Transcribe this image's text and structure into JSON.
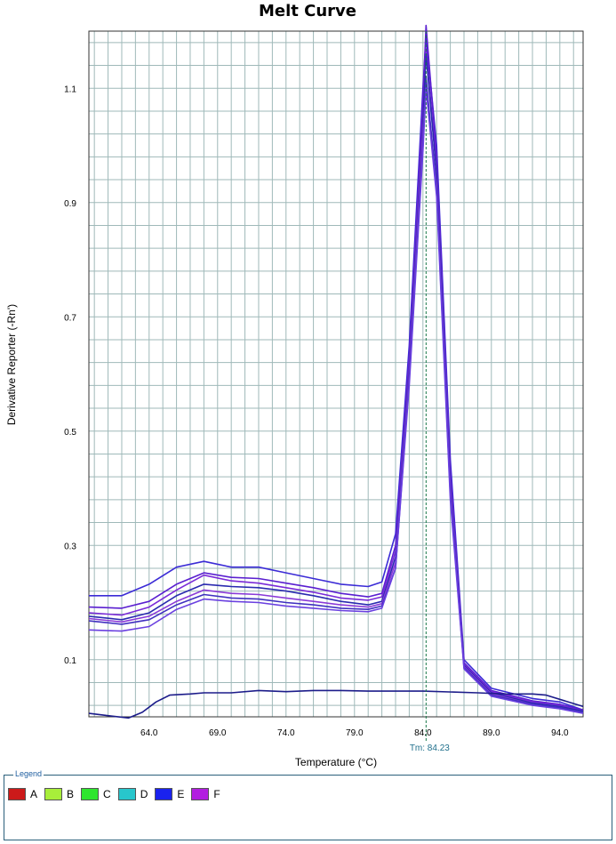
{
  "chart_data": {
    "type": "line",
    "title": "Melt Curve",
    "xlabel": "Temperature (°C)",
    "ylabel": "Derivative Reporter (-Rn')",
    "xlim": [
      59.6,
      95.7
    ],
    "ylim": [
      0.0,
      1.2
    ],
    "x_ticks": [
      64.0,
      69.0,
      74.0,
      79.0,
      84.0,
      89.0,
      94.0
    ],
    "x_tick_labels": [
      "64.0",
      "69.0",
      "74.0",
      "79.0",
      "84.0",
      "89.0",
      "94.0"
    ],
    "y_ticks": [
      0.1,
      0.3,
      0.5,
      0.7,
      0.9,
      1.1
    ],
    "y_tick_labels": [
      "0.1",
      "0.3",
      "0.5",
      "0.7",
      "0.9",
      "1.1"
    ],
    "grid": true,
    "tm_marker": {
      "x": 84.23,
      "label": "Tm: 84.23"
    },
    "series": [
      {
        "color": "#3b2bd6",
        "points": [
          [
            59.6,
            0.212
          ],
          [
            62,
            0.212
          ],
          [
            64,
            0.232
          ],
          [
            66,
            0.262
          ],
          [
            68,
            0.272
          ],
          [
            70,
            0.262
          ],
          [
            72,
            0.262
          ],
          [
            74,
            0.252
          ],
          [
            76,
            0.242
          ],
          [
            78,
            0.232
          ],
          [
            80,
            0.228
          ],
          [
            81,
            0.236
          ],
          [
            82,
            0.32
          ],
          [
            83,
            0.65
          ],
          [
            84,
            1.1
          ],
          [
            84.23,
            1.19
          ],
          [
            85,
            1.0
          ],
          [
            86,
            0.45
          ],
          [
            87,
            0.1
          ],
          [
            89,
            0.05
          ],
          [
            92,
            0.032
          ],
          [
            94,
            0.026
          ],
          [
            95.7,
            0.012
          ]
        ]
      },
      {
        "color": "#5a1fd0",
        "points": [
          [
            59.6,
            0.192
          ],
          [
            62,
            0.19
          ],
          [
            64,
            0.202
          ],
          [
            66,
            0.232
          ],
          [
            68,
            0.252
          ],
          [
            70,
            0.244
          ],
          [
            72,
            0.242
          ],
          [
            74,
            0.234
          ],
          [
            76,
            0.226
          ],
          [
            78,
            0.216
          ],
          [
            80,
            0.21
          ],
          [
            81,
            0.216
          ],
          [
            82,
            0.3
          ],
          [
            83,
            0.63
          ],
          [
            84,
            1.08
          ],
          [
            84.23,
            1.21
          ],
          [
            85,
            0.98
          ],
          [
            86,
            0.43
          ],
          [
            87,
            0.095
          ],
          [
            89,
            0.046
          ],
          [
            92,
            0.028
          ],
          [
            94,
            0.022
          ],
          [
            95.7,
            0.012
          ]
        ]
      },
      {
        "color": "#7a2ad8",
        "points": [
          [
            59.6,
            0.182
          ],
          [
            62,
            0.178
          ],
          [
            64,
            0.192
          ],
          [
            66,
            0.222
          ],
          [
            68,
            0.248
          ],
          [
            70,
            0.238
          ],
          [
            72,
            0.234
          ],
          [
            74,
            0.226
          ],
          [
            76,
            0.218
          ],
          [
            78,
            0.208
          ],
          [
            80,
            0.204
          ],
          [
            81,
            0.21
          ],
          [
            82,
            0.29
          ],
          [
            83,
            0.62
          ],
          [
            84,
            1.06
          ],
          [
            84.23,
            1.17
          ],
          [
            85,
            0.96
          ],
          [
            86,
            0.42
          ],
          [
            87,
            0.092
          ],
          [
            89,
            0.044
          ],
          [
            92,
            0.026
          ],
          [
            94,
            0.02
          ],
          [
            95.7,
            0.01
          ]
        ]
      },
      {
        "color": "#2a2ab0",
        "points": [
          [
            59.6,
            0.176
          ],
          [
            62,
            0.17
          ],
          [
            64,
            0.182
          ],
          [
            66,
            0.212
          ],
          [
            68,
            0.232
          ],
          [
            70,
            0.228
          ],
          [
            72,
            0.226
          ],
          [
            74,
            0.22
          ],
          [
            76,
            0.212
          ],
          [
            78,
            0.202
          ],
          [
            80,
            0.196
          ],
          [
            81,
            0.202
          ],
          [
            82,
            0.28
          ],
          [
            83,
            0.61
          ],
          [
            84,
            1.04
          ],
          [
            84.23,
            1.16
          ],
          [
            85,
            0.95
          ],
          [
            86,
            0.41
          ],
          [
            87,
            0.09
          ],
          [
            89,
            0.042
          ],
          [
            92,
            0.024
          ],
          [
            94,
            0.018
          ],
          [
            95.7,
            0.01
          ]
        ]
      },
      {
        "color": "#8a3ad8",
        "points": [
          [
            59.6,
            0.172
          ],
          [
            62,
            0.166
          ],
          [
            64,
            0.176
          ],
          [
            66,
            0.202
          ],
          [
            68,
            0.222
          ],
          [
            70,
            0.216
          ],
          [
            72,
            0.214
          ],
          [
            74,
            0.208
          ],
          [
            76,
            0.202
          ],
          [
            78,
            0.196
          ],
          [
            80,
            0.192
          ],
          [
            81,
            0.198
          ],
          [
            82,
            0.27
          ],
          [
            83,
            0.6
          ],
          [
            84,
            1.02
          ],
          [
            84.23,
            1.11
          ],
          [
            85,
            0.93
          ],
          [
            86,
            0.4
          ],
          [
            87,
            0.088
          ],
          [
            89,
            0.04
          ],
          [
            92,
            0.022
          ],
          [
            94,
            0.016
          ],
          [
            95.7,
            0.008
          ]
        ]
      },
      {
        "color": "#4030c0",
        "points": [
          [
            59.6,
            0.168
          ],
          [
            62,
            0.162
          ],
          [
            64,
            0.17
          ],
          [
            66,
            0.196
          ],
          [
            68,
            0.214
          ],
          [
            70,
            0.208
          ],
          [
            72,
            0.206
          ],
          [
            74,
            0.2
          ],
          [
            76,
            0.196
          ],
          [
            78,
            0.19
          ],
          [
            80,
            0.188
          ],
          [
            81,
            0.194
          ],
          [
            82,
            0.26
          ],
          [
            83,
            0.59
          ],
          [
            84,
            1.0
          ],
          [
            84.23,
            1.12
          ],
          [
            85,
            0.92
          ],
          [
            86,
            0.39
          ],
          [
            87,
            0.086
          ],
          [
            89,
            0.038
          ],
          [
            92,
            0.022
          ],
          [
            94,
            0.016
          ],
          [
            95.7,
            0.008
          ]
        ]
      },
      {
        "color": "#6a40e0",
        "points": [
          [
            59.6,
            0.152
          ],
          [
            62,
            0.15
          ],
          [
            64,
            0.158
          ],
          [
            66,
            0.188
          ],
          [
            68,
            0.206
          ],
          [
            70,
            0.202
          ],
          [
            72,
            0.2
          ],
          [
            74,
            0.194
          ],
          [
            76,
            0.19
          ],
          [
            78,
            0.186
          ],
          [
            80,
            0.184
          ],
          [
            81,
            0.19
          ],
          [
            82,
            0.26
          ],
          [
            83,
            0.58
          ],
          [
            84,
            0.99
          ],
          [
            84.23,
            1.1
          ],
          [
            85,
            0.91
          ],
          [
            86,
            0.38
          ],
          [
            87,
            0.084
          ],
          [
            89,
            0.036
          ],
          [
            92,
            0.02
          ],
          [
            94,
            0.014
          ],
          [
            95.7,
            0.006
          ]
        ]
      },
      {
        "color": "#1c1c8a",
        "points": [
          [
            59.6,
            0.006
          ],
          [
            61,
            0.002
          ],
          [
            62.5,
            -0.002
          ],
          [
            63.5,
            0.008
          ],
          [
            64.5,
            0.026
          ],
          [
            65.5,
            0.038
          ],
          [
            67,
            0.04
          ],
          [
            68,
            0.042
          ],
          [
            70,
            0.042
          ],
          [
            72,
            0.046
          ],
          [
            74,
            0.044
          ],
          [
            76,
            0.046
          ],
          [
            78,
            0.046
          ],
          [
            80,
            0.045
          ],
          [
            84,
            0.045
          ],
          [
            88,
            0.042
          ],
          [
            90,
            0.04
          ],
          [
            92,
            0.04
          ],
          [
            93,
            0.038
          ],
          [
            95.7,
            0.018
          ]
        ]
      }
    ]
  },
  "legend": {
    "title": "Legend",
    "items": [
      {
        "label": "A",
        "color": "#cc1a1a"
      },
      {
        "label": "B",
        "color": "#a8ee3a"
      },
      {
        "label": "C",
        "color": "#2ee62e"
      },
      {
        "label": "D",
        "color": "#28c6cc"
      },
      {
        "label": "E",
        "color": "#1a22ee"
      },
      {
        "label": "F",
        "color": "#b21ee0"
      }
    ]
  }
}
